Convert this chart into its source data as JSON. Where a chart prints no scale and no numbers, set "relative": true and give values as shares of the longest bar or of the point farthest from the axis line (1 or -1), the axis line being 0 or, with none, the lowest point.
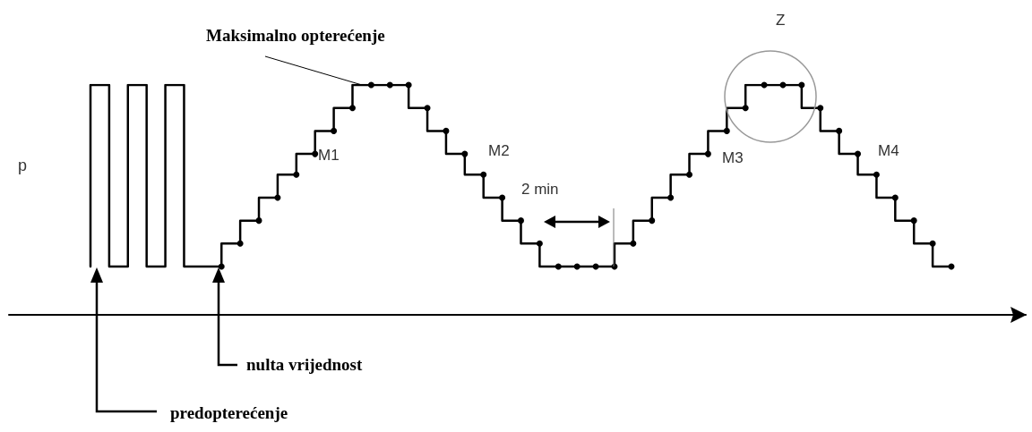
{
  "chart_data": {
    "type": "step",
    "relative": true,
    "tick_labels": false,
    "marker": "circle",
    "ylabel": "p",
    "annotations": [
      "Maksimalno opterećenje",
      "M1",
      "M2",
      "2 min",
      "M3",
      "Z",
      "M4",
      "nulta vrijednost",
      "predopterećenje"
    ],
    "categories": [
      null,
      null,
      null,
      null,
      null,
      null,
      null,
      null,
      null,
      null,
      null,
      null,
      null,
      null,
      null,
      null,
      null,
      null,
      null,
      null,
      null,
      null,
      null,
      null,
      null,
      null,
      null,
      null,
      null,
      null,
      null,
      null,
      null,
      null,
      null,
      null,
      null,
      null,
      null,
      null,
      null,
      null,
      null,
      null,
      null,
      null,
      null
    ],
    "series": [
      {
        "color": "#000000",
        "marker": "none",
        "values": [
          0.21,
          1,
          0.21,
          1,
          0.21,
          1,
          0.21,
          0.21,
          null,
          null,
          null,
          null,
          null,
          null,
          null,
          null,
          null,
          null,
          null,
          null,
          null,
          null,
          null,
          null,
          null,
          null,
          null,
          null,
          null,
          null,
          null,
          null,
          null,
          null,
          null,
          null,
          null,
          null,
          null,
          null,
          null,
          null,
          null,
          null,
          null,
          null,
          null
        ]
      },
      {
        "color": "#000000",
        "values": [
          null,
          null,
          null,
          null,
          null,
          null,
          null,
          0.21,
          0.31,
          0.41,
          0.51,
          0.61,
          0.7,
          0.8,
          0.9,
          1,
          1,
          1,
          0.9,
          0.8,
          0.7,
          0.61,
          0.51,
          0.41,
          0.31,
          0.21,
          0.21,
          0.21,
          0.21,
          0.31,
          0.41,
          0.51,
          0.61,
          0.7,
          0.8,
          0.9,
          1,
          1,
          1,
          0.9,
          0.8,
          0.7,
          0.61,
          0.51,
          0.41,
          0.31,
          0.21
        ]
      }
    ]
  }
}
